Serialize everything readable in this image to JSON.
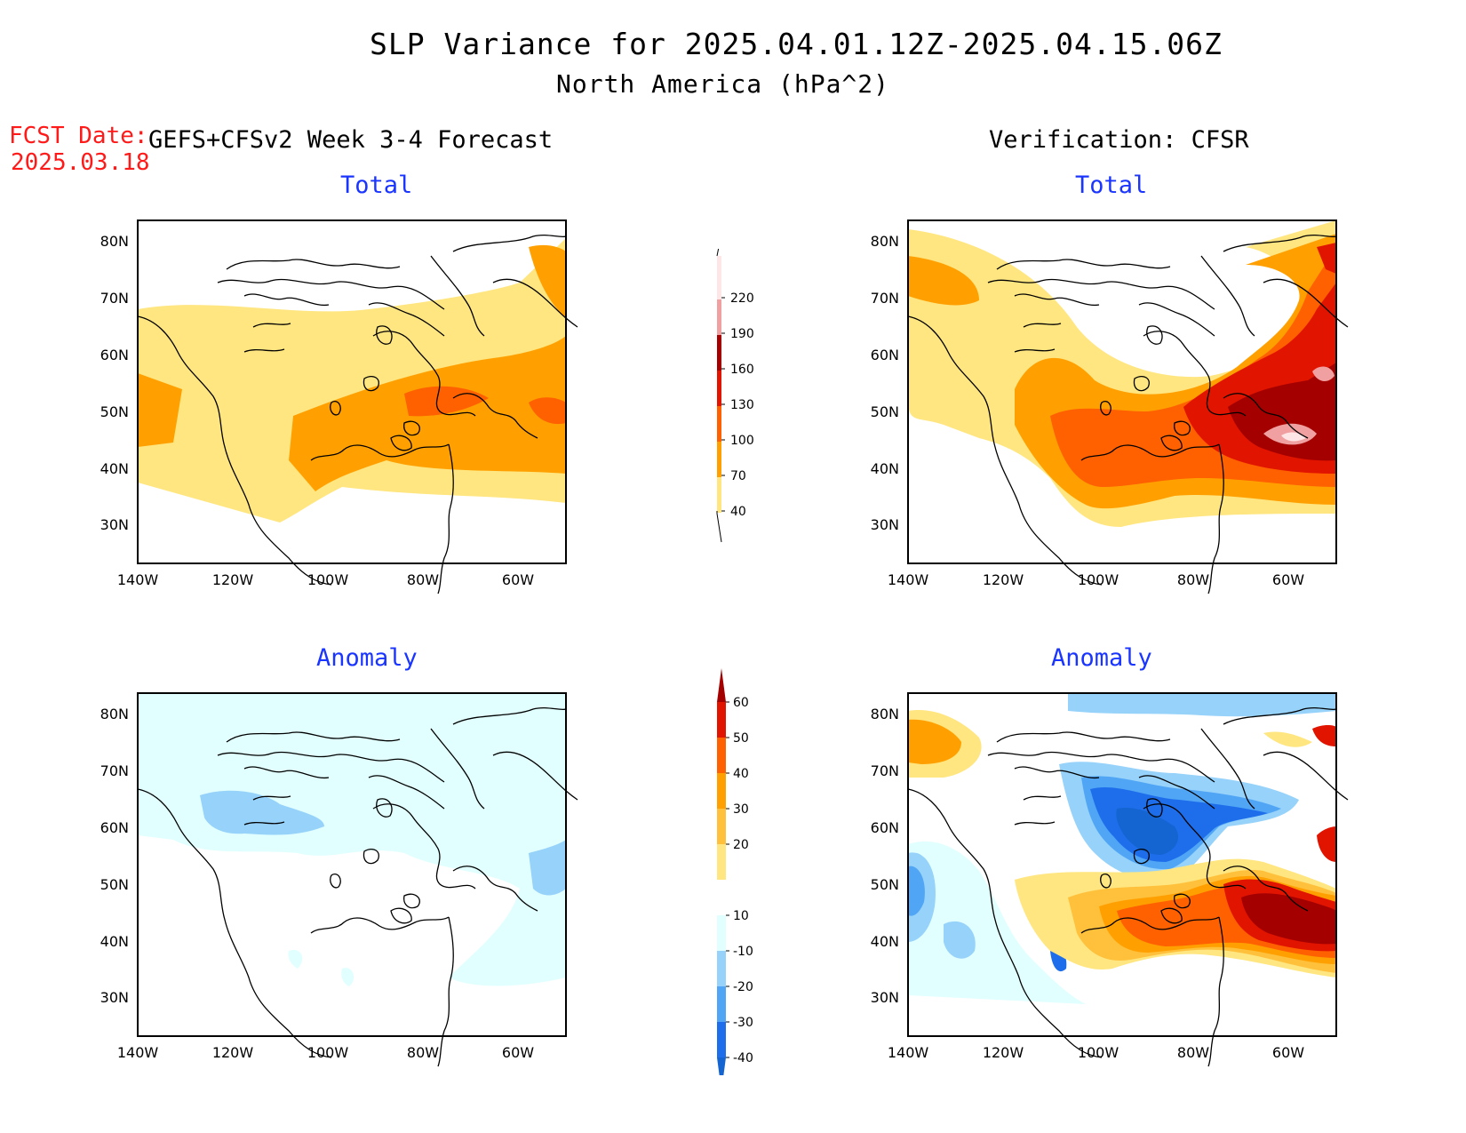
{
  "header": {
    "title": "SLP Variance for 2025.04.01.12Z-2025.04.15.06Z",
    "subtitle": "North America (hPa^2)",
    "fcst_label": "FCST Date:",
    "fcst_date": "2025.03.18",
    "left_section": "GEFS+CFSv2 Week 3-4 Forecast",
    "right_section": "Verification: CFSR"
  },
  "panels": {
    "forecast_total": {
      "title": "Total"
    },
    "verification_total": {
      "title": "Total"
    },
    "forecast_anomaly": {
      "title": "Anomaly"
    },
    "verification_anomaly": {
      "title": "Anomaly"
    }
  },
  "axes": {
    "lon_ticks": [
      "140W",
      "120W",
      "100W",
      "80W",
      "60W"
    ],
    "lat_ticks": [
      "30N",
      "40N",
      "50N",
      "60N",
      "70N",
      "80N"
    ]
  },
  "total_colorbar": {
    "labels": [
      "40",
      "70",
      "100",
      "130",
      "160",
      "190",
      "220"
    ],
    "colors": [
      "#ffe680",
      "#ffa000",
      "#ff6000",
      "#e11400",
      "#a50000",
      "#f0a0a0",
      "#ffe6e6"
    ]
  },
  "anomaly_colorbar": {
    "labels": [
      "-40",
      "-30",
      "-20",
      "-10",
      "10",
      "20",
      "30",
      "40",
      "50",
      "60"
    ],
    "colors": [
      "#1464d2",
      "#1e6eeb",
      "#50a5f5",
      "#96d2fa",
      "#e1ffff",
      "#ffffff",
      "#ffe680",
      "#ffc03c",
      "#ffa000",
      "#ff6000",
      "#e11400",
      "#a50000"
    ]
  }
}
